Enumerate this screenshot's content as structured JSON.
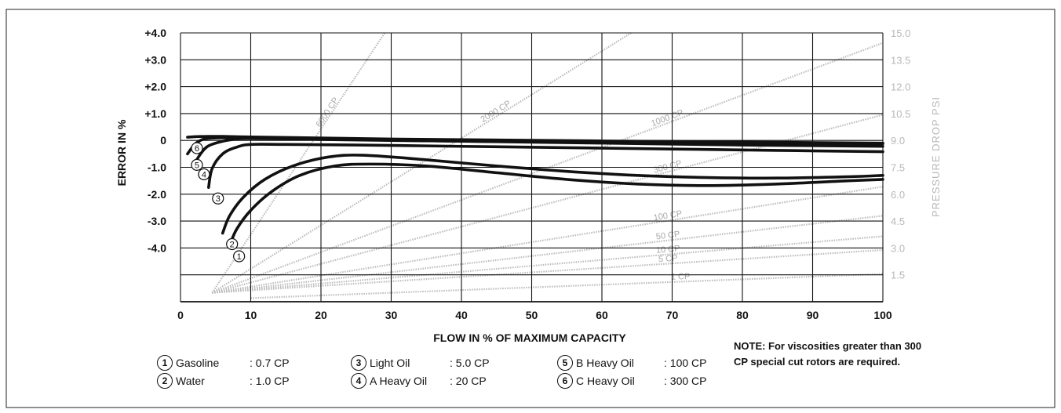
{
  "chart_data": {
    "type": "line",
    "xlabel": "FLOW IN % OF MAXIMUM CAPACITY",
    "ylabel": "ERROR IN %",
    "y2label": "PRESSURE DROP PSI",
    "xlim": [
      0,
      100
    ],
    "ylim": [
      -6.0,
      4.0
    ],
    "y2lim": [
      0,
      15.0
    ],
    "x_ticks": [
      "0",
      "10",
      "20",
      "30",
      "40",
      "50",
      "60",
      "70",
      "80",
      "90",
      "100"
    ],
    "y_ticks": [
      {
        "value": 4.0,
        "label": "+4.0"
      },
      {
        "value": 3.0,
        "label": "+3.0"
      },
      {
        "value": 2.0,
        "label": "+2.0"
      },
      {
        "value": 1.0,
        "label": "+1.0"
      },
      {
        "value": 0.0,
        "label": "0"
      },
      {
        "value": -1.0,
        "label": "-1.0"
      },
      {
        "value": -2.0,
        "label": "-2.0"
      },
      {
        "value": -3.0,
        "label": "-3.0"
      },
      {
        "value": -4.0,
        "label": "-4.0"
      }
    ],
    "y2_ticks": [
      "15.0",
      "13.5",
      "12.0",
      "10.5",
      "9.0",
      "7.5",
      "6.0",
      "4.5",
      "3.0",
      "1.5"
    ],
    "grid": true,
    "series": [
      {
        "marker": "1",
        "x": [
          7,
          8,
          10,
          13,
          17,
          22,
          27,
          35,
          45,
          55,
          65,
          75,
          85,
          95,
          100
        ],
        "y": [
          -3.9,
          -3.3,
          -2.6,
          -1.9,
          -1.3,
          -0.95,
          -0.88,
          -0.95,
          -1.2,
          -1.45,
          -1.62,
          -1.68,
          -1.62,
          -1.5,
          -1.45
        ]
      },
      {
        "marker": "2",
        "x": [
          6,
          7,
          9,
          12,
          16,
          21,
          26,
          35,
          45,
          55,
          65,
          75,
          85,
          95,
          100
        ],
        "y": [
          -3.45,
          -2.8,
          -2.1,
          -1.45,
          -0.95,
          -0.62,
          -0.55,
          -0.72,
          -0.95,
          -1.15,
          -1.3,
          -1.38,
          -1.4,
          -1.35,
          -1.3
        ]
      },
      {
        "marker": "3",
        "x": [
          4,
          4.5,
          6,
          8,
          10,
          15,
          25,
          40,
          55,
          70,
          85,
          100
        ],
        "y": [
          -1.75,
          -1.05,
          -0.5,
          -0.25,
          -0.15,
          -0.15,
          -0.17,
          -0.22,
          -0.27,
          -0.32,
          -0.37,
          -0.42
        ]
      },
      {
        "marker": "4",
        "x": [
          2,
          3,
          4,
          6,
          8,
          10,
          20,
          40,
          60,
          80,
          100
        ],
        "y": [
          -0.85,
          -0.45,
          -0.2,
          -0.03,
          0.05,
          0.08,
          0.05,
          -0.03,
          -0.1,
          -0.17,
          -0.22
        ]
      },
      {
        "marker": "5",
        "x": [
          1,
          2,
          3,
          4,
          6,
          8,
          10,
          30,
          50,
          70,
          100
        ],
        "y": [
          -0.5,
          -0.15,
          0.02,
          0.08,
          0.1,
          0.1,
          0.08,
          0.0,
          -0.05,
          -0.08,
          -0.12
        ]
      },
      {
        "marker": "6",
        "x": [
          1,
          2,
          4,
          6,
          10,
          30,
          60,
          100
        ],
        "y": [
          0.12,
          0.14,
          0.15,
          0.15,
          0.13,
          0.05,
          -0.02,
          -0.1
        ]
      }
    ],
    "viscosity_lines": [
      {
        "label": "6000 CP",
        "slope_psi_per_pct": 0.59
      },
      {
        "label": "2000 CP",
        "slope_psi_per_pct": 0.243
      },
      {
        "label": "1000 CP",
        "slope_psi_per_pct": 0.146
      },
      {
        "label": "300 CP",
        "slope_psi_per_pct": 0.104
      },
      {
        "label": "100 CP",
        "slope_psi_per_pct": 0.062
      },
      {
        "label": "50 CP",
        "slope_psi_per_pct": 0.045
      },
      {
        "label": "10 CP",
        "slope_psi_per_pct": 0.033
      },
      {
        "label": "5 CP",
        "slope_psi_per_pct": 0.025
      },
      {
        "label": "1 CP",
        "slope_psi_per_pct": 0.015
      }
    ],
    "legend": [
      {
        "marker": "1",
        "name": "Gasoline",
        "viscosity": ": 0.7 CP"
      },
      {
        "marker": "2",
        "name": "Water",
        "viscosity": ": 1.0 CP"
      },
      {
        "marker": "3",
        "name": "Light Oil",
        "viscosity": ": 5.0 CP"
      },
      {
        "marker": "4",
        "name": "A Heavy Oil",
        "viscosity": ": 20 CP"
      },
      {
        "marker": "5",
        "name": "B Heavy Oil",
        "viscosity": ": 100 CP"
      },
      {
        "marker": "6",
        "name": "C Heavy Oil",
        "viscosity": ": 300 CP"
      }
    ],
    "note": "NOTE:  For viscosities greater than 300 CP special cut rotors are required."
  }
}
